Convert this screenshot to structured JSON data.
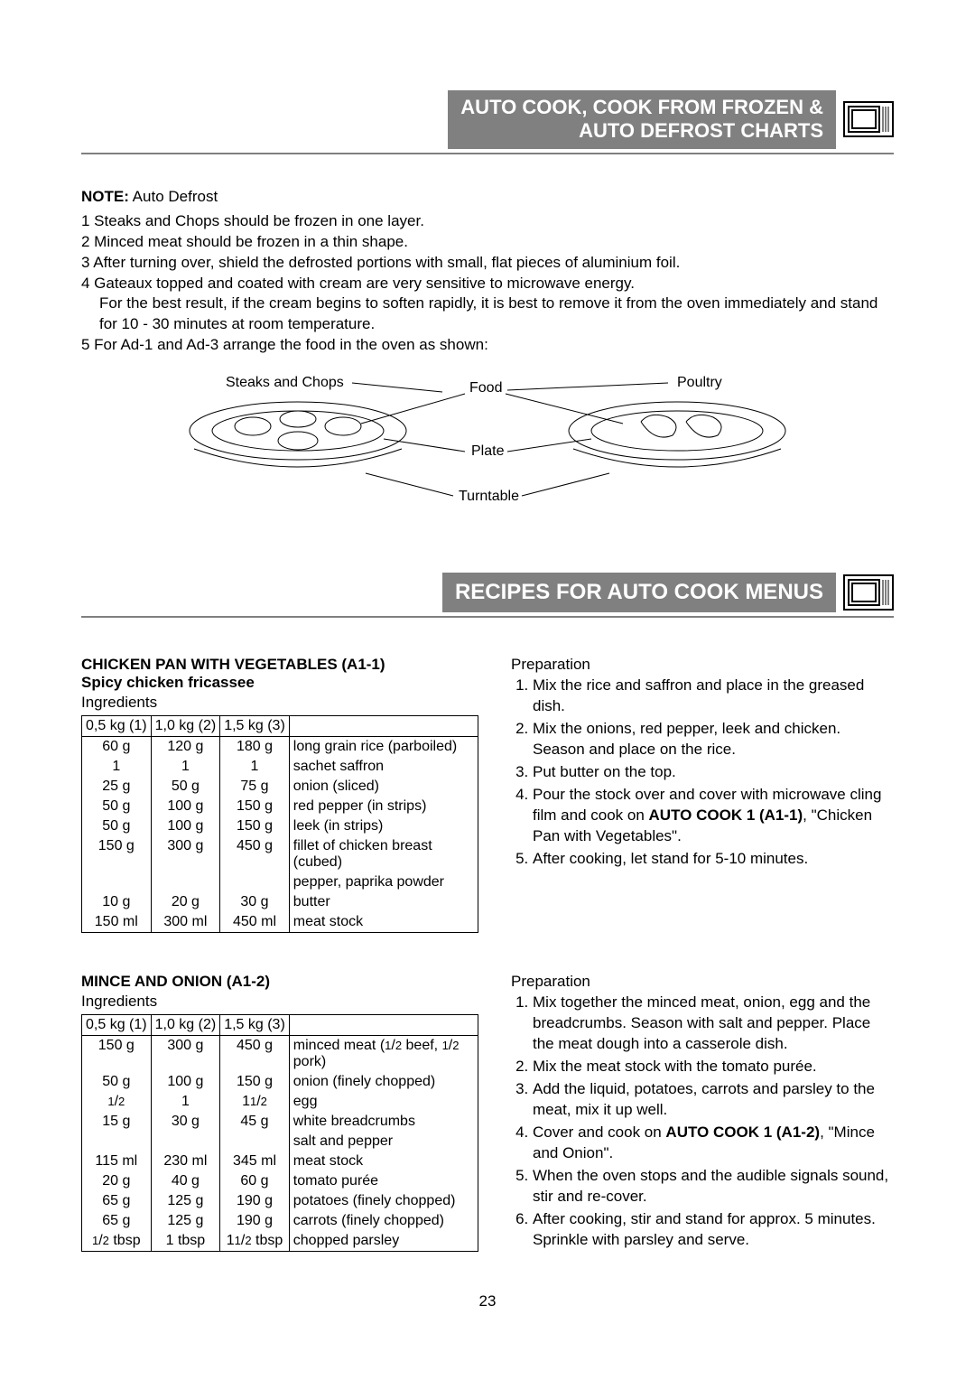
{
  "header": {
    "title_line1": "AUTO COOK, COOK FROM FROZEN &",
    "title_line2": "AUTO DEFROST CHARTS"
  },
  "note": {
    "label": "NOTE:",
    "subject": " Auto Defrost",
    "items": [
      "1  Steaks and Chops should be frozen in one layer.",
      "2  Minced meat should be frozen in a thin shape.",
      "3  After turning over, shield the defrosted portions with small, flat pieces of aluminium foil.",
      "4  Gateaux topped and coated with cream are very sensitive to microwave energy.",
      "    For the best result, if the cream begins to soften rapidly, it is best to remove it from the oven immediately and stand for 10 - 30 minutes at room temperature.",
      "5  For Ad-1 and Ad-3 arrange the food in the oven as shown:"
    ]
  },
  "diagram": {
    "left_label": "Steaks and Chops",
    "center_label": "Food",
    "right_label": "Poultry",
    "plate_label": "Plate",
    "turntable_label": "Turntable"
  },
  "section2": {
    "title": "RECIPES FOR AUTO COOK MENUS"
  },
  "recipe1": {
    "title": "CHICKEN PAN WITH VEGETABLES (A1-1)",
    "subtitle": "Spicy chicken fricassee",
    "ingredients_label": "Ingredients",
    "headers": [
      "0,5 kg (1)",
      "1,0 kg (2)",
      "1,5 kg (3)",
      ""
    ],
    "rows": [
      [
        "60 g",
        "120 g",
        "180 g",
        "long grain rice (parboiled)"
      ],
      [
        "1",
        "1",
        "1",
        "sachet saffron"
      ],
      [
        "25 g",
        "50 g",
        "75 g",
        "onion (sliced)"
      ],
      [
        "50 g",
        "100 g",
        "150 g",
        "red pepper (in strips)"
      ],
      [
        "50 g",
        "100 g",
        "150 g",
        "leek (in strips)"
      ],
      [
        "150 g",
        "300 g",
        "450 g",
        "fillet of chicken breast (cubed)"
      ],
      [
        "",
        "",
        "",
        "pepper, paprika powder"
      ],
      [
        "10 g",
        "20 g",
        "30 g",
        "butter"
      ],
      [
        "150 ml",
        "300 ml",
        "450 ml",
        "meat stock"
      ]
    ],
    "prep_label": "Preparation",
    "prep": [
      "Mix the rice and saffron and place in the greased dish.",
      "Mix the onions, red pepper, leek and chicken. Season and place on the rice.",
      "Put butter on the top.",
      "Pour the stock over and cover with microwave cling film and cook on <b>AUTO COOK 1 (A1-1)</b>, \"Chicken Pan with Vegetables\".",
      "After cooking, let stand for 5-10 minutes."
    ]
  },
  "recipe2": {
    "title": "MINCE AND ONION (A1-2)",
    "ingredients_label": "Ingredients",
    "headers": [
      "0,5 kg (1)",
      "1,0 kg (2)",
      "1,5 kg (3)",
      ""
    ],
    "rows": [
      [
        "150 g",
        "300 g",
        "450 g",
        "minced meat (1/2 beef, 1/2 pork)"
      ],
      [
        "50 g",
        "100 g",
        "150 g",
        "onion (finely chopped)"
      ],
      [
        "1/2",
        "1",
        "11/2",
        "egg"
      ],
      [
        "15 g",
        "30 g",
        "45 g",
        "white breadcrumbs"
      ],
      [
        "",
        "",
        "",
        "salt and pepper"
      ],
      [
        "115 ml",
        "230 ml",
        "345 ml",
        "meat stock"
      ],
      [
        "20 g",
        "40 g",
        "60 g",
        "tomato purée"
      ],
      [
        "65 g",
        "125 g",
        "190 g",
        "potatoes (finely chopped)"
      ],
      [
        "65 g",
        "125 g",
        "190 g",
        "carrots (finely chopped)"
      ],
      [
        "1/2 tbsp",
        "1 tbsp",
        "11/2 tbsp",
        "chopped parsley"
      ]
    ],
    "prep_label": "Preparation",
    "prep": [
      "Mix together the minced meat, onion, egg and the breadcrumbs. Season with salt and pepper. Place the meat dough into a casserole dish.",
      "Mix the meat stock with the tomato purée.",
      "Add the liquid, potatoes, carrots and parsley to the meat, mix it up well.",
      "Cover and cook on <b>AUTO COOK 1 (A1-2)</b>, \"Mince and Onion\".",
      "When the oven stops and the audible signals sound, stir and re-cover.",
      "After cooking, stir and stand for approx. 5 minutes. Sprinkle with parsley and serve."
    ]
  },
  "page_number": "23",
  "colors": {
    "bar_bg": "#808080",
    "bar_text": "#ffffff",
    "border": "#000000"
  }
}
